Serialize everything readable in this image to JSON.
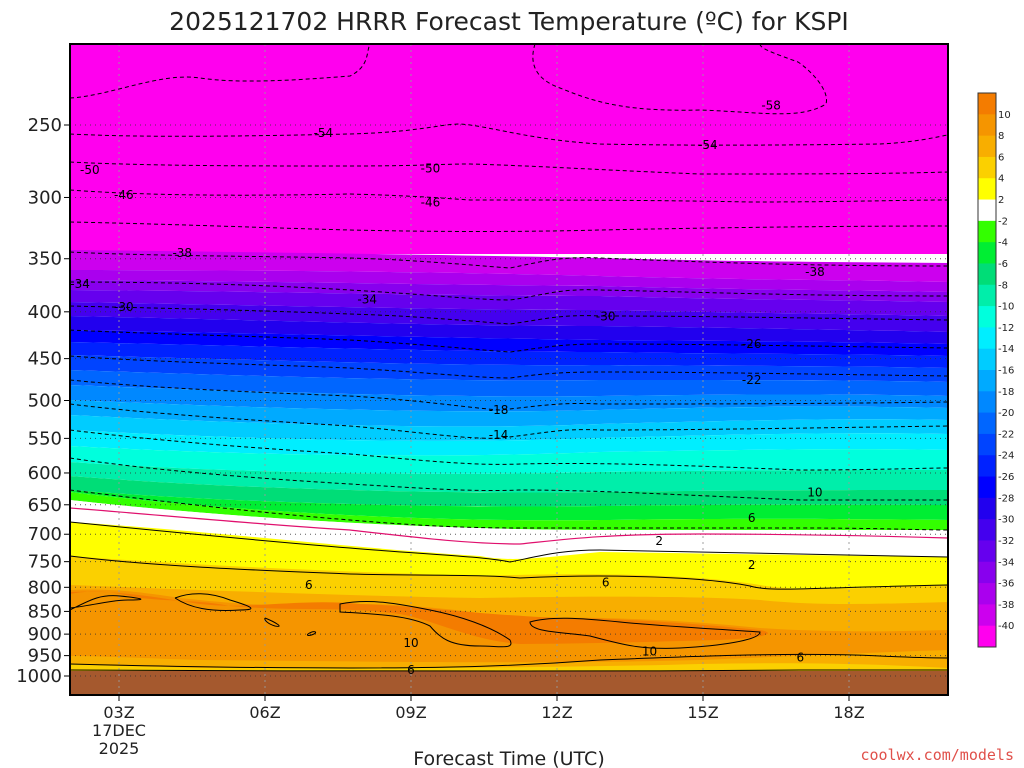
{
  "chart_data": {
    "type": "heatmap",
    "title": "2025121702 HRRR Forecast Temperature (ºC) for KSPI",
    "xlabel": "Forecast Time (UTC)",
    "ylabel": "",
    "credit": "coolwx.com/models",
    "x_ticks": [
      "03Z",
      "06Z",
      "09Z",
      "12Z",
      "15Z",
      "18Z"
    ],
    "x_start_date": [
      "17DEC",
      "2025"
    ],
    "x_range_hours_utc": [
      2,
      20
    ],
    "y_ticks": [
      "250",
      "300",
      "350",
      "400",
      "450",
      "500",
      "550",
      "600",
      "650",
      "700",
      "750",
      "800",
      "850",
      "900",
      "950",
      "1000"
    ],
    "y_range_hpa": [
      1000,
      200
    ],
    "y_scale": "log",
    "grid": true,
    "colorbar": {
      "placement": "right",
      "labels": [
        "10",
        "8",
        "6",
        "4",
        "2",
        "-2",
        "-4",
        "-6",
        "-8",
        "-10",
        "-12",
        "-14",
        "-16",
        "-18",
        "-20",
        "-22",
        "-24",
        "-26",
        "-28",
        "-30",
        "-32",
        "-34",
        "-36",
        "-38",
        "-40"
      ],
      "colors": [
        "#f47c00",
        "#f59500",
        "#f8ae00",
        "#fbd000",
        "#ffff00",
        "#ffffff",
        "#33ff00",
        "#00ee33",
        "#00dd77",
        "#00eeaa",
        "#00ffdd",
        "#00eeff",
        "#00ccff",
        "#00aaff",
        "#0088ff",
        "#0066ff",
        "#0044ff",
        "#0022ff",
        "#0000ff",
        "#2200ee",
        "#4400ee",
        "#6600ee",
        "#8800ee",
        "#aa00ee",
        "#cc00ee",
        "#ff00ee"
      ]
    },
    "contour_labels": [
      {
        "text": "-58",
        "hour": 16.4,
        "hpa": 238
      },
      {
        "text": "-54",
        "hour": 7.2,
        "hpa": 255
      },
      {
        "text": "-54",
        "hour": 15.1,
        "hpa": 263
      },
      {
        "text": "-50",
        "hour": 2.4,
        "hpa": 280
      },
      {
        "text": "-50",
        "hour": 9.4,
        "hpa": 279
      },
      {
        "text": "-46",
        "hour": 3.1,
        "hpa": 298
      },
      {
        "text": "-46",
        "hour": 9.4,
        "hpa": 304
      },
      {
        "text": "-38",
        "hour": 4.3,
        "hpa": 345
      },
      {
        "text": "-38",
        "hour": 17.3,
        "hpa": 362
      },
      {
        "text": "-34",
        "hour": 2.2,
        "hpa": 373
      },
      {
        "text": "-34",
        "hour": 8.1,
        "hpa": 388
      },
      {
        "text": "-30",
        "hour": 3.1,
        "hpa": 395
      },
      {
        "text": "-30",
        "hour": 13.0,
        "hpa": 405
      },
      {
        "text": "-26",
        "hour": 16.0,
        "hpa": 434
      },
      {
        "text": "-22",
        "hour": 16.0,
        "hpa": 475
      },
      {
        "text": "-18",
        "hour": 10.8,
        "hpa": 512
      },
      {
        "text": "-14",
        "hour": 10.8,
        "hpa": 545
      },
      {
        "text": "10",
        "hour": 17.3,
        "hpa": 630
      },
      {
        "text": "6",
        "hour": 16.0,
        "hpa": 672
      },
      {
        "text": "2",
        "hour": 14.1,
        "hpa": 712
      },
      {
        "text": "2",
        "hour": 16.0,
        "hpa": 756
      },
      {
        "text": "6",
        "hour": 6.9,
        "hpa": 795
      },
      {
        "text": "6",
        "hour": 13.0,
        "hpa": 790
      },
      {
        "text": "10",
        "hour": 9.0,
        "hpa": 920
      },
      {
        "text": "10",
        "hour": 13.9,
        "hpa": 940
      },
      {
        "text": "6",
        "hour": 9.0,
        "hpa": 985
      },
      {
        "text": "6",
        "hour": 17.0,
        "hpa": 955
      }
    ]
  }
}
